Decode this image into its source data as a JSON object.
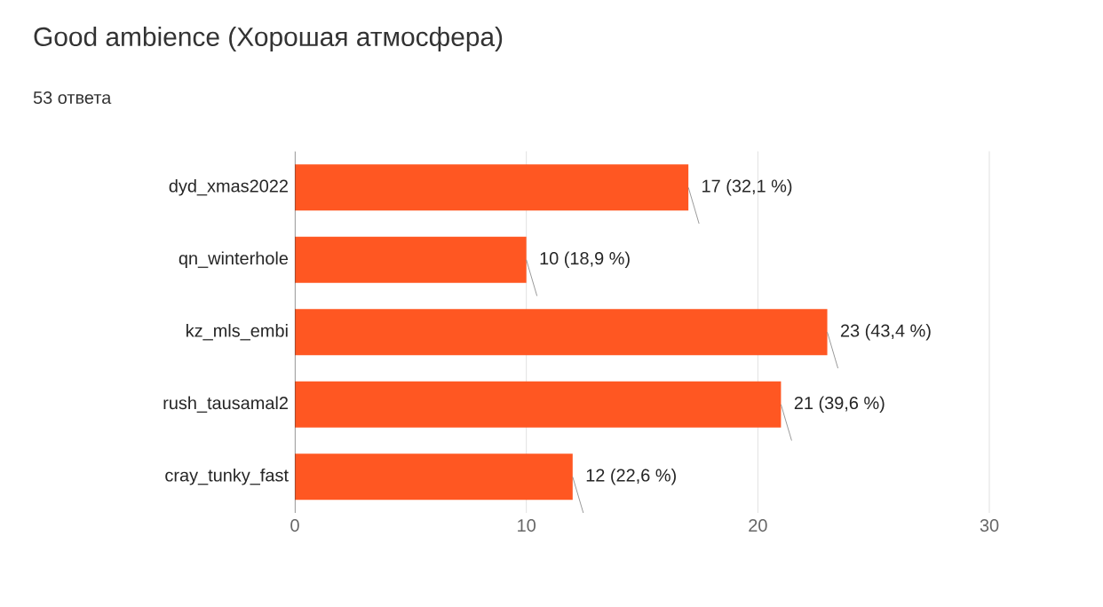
{
  "chart_data": {
    "type": "bar",
    "orientation": "horizontal",
    "title": "Good ambience (Хорошая атмосфера)",
    "subtitle": "53 ответа",
    "categories": [
      "dyd_xmas2022",
      "qn_winterhole",
      "kz_mls_embi",
      "rush_tausamal2",
      "cray_tunky_fast"
    ],
    "values": [
      17,
      10,
      23,
      21,
      12
    ],
    "value_labels": [
      "17 (32,1 %)",
      "10 (18,9 %)",
      "23 (43,4 %)",
      "21 (39,6 %)",
      "12 (22,6 %)"
    ],
    "color": "#ff5722",
    "xlim": [
      0,
      30
    ],
    "xticks": [
      0,
      10,
      20,
      30
    ],
    "grid": "x"
  }
}
